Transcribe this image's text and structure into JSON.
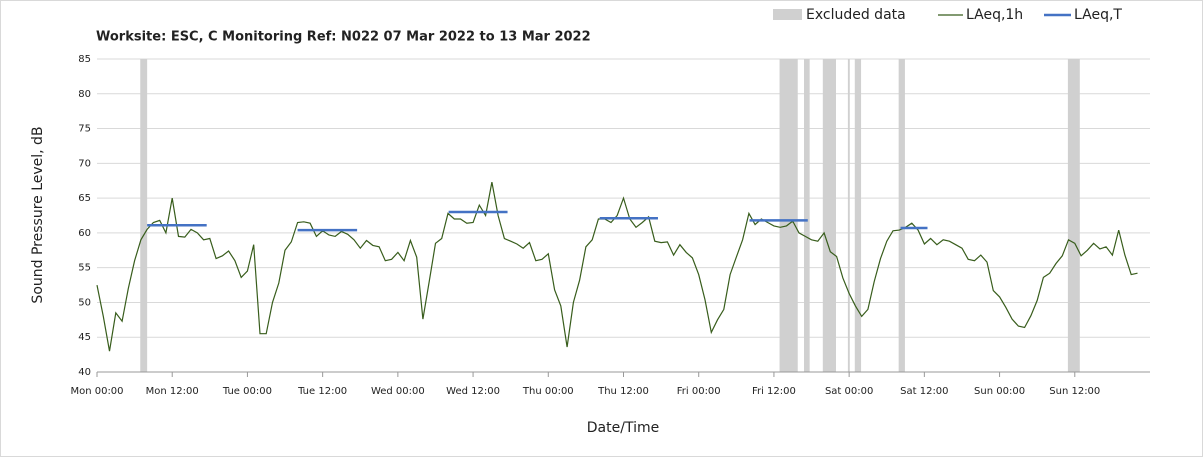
{
  "chart_data": {
    "type": "line",
    "title": "Worksite: ESC, C Monitoring Ref: N022 07 Mar 2022 to 13 Mar 2022",
    "x_label": "Date/Time",
    "y_label": "Sound Pressure Level, dB",
    "xlim": [
      0,
      168
    ],
    "ylim": [
      40,
      85
    ],
    "yticks": [
      40,
      45,
      50,
      55,
      60,
      65,
      70,
      75,
      80,
      85
    ],
    "xticks": [
      {
        "value": 0,
        "label": "Mon 00:00"
      },
      {
        "value": 12,
        "label": "Mon 12:00"
      },
      {
        "value": 24,
        "label": "Tue 00:00"
      },
      {
        "value": 36,
        "label": "Tue 12:00"
      },
      {
        "value": 48,
        "label": "Wed 00:00"
      },
      {
        "value": 60,
        "label": "Wed 12:00"
      },
      {
        "value": 72,
        "label": "Thu 00:00"
      },
      {
        "value": 84,
        "label": "Thu 12:00"
      },
      {
        "value": 96,
        "label": "Fri 00:00"
      },
      {
        "value": 108,
        "label": "Fri 12:00"
      },
      {
        "value": 120,
        "label": "Sat 00:00"
      },
      {
        "value": 132,
        "label": "Sat 12:00"
      },
      {
        "value": 144,
        "label": "Sun 00:00"
      },
      {
        "value": 156,
        "label": "Sun 12:00"
      }
    ],
    "grid": true,
    "legend": "top-right",
    "excluded": {
      "name": "Excluded data",
      "color": "#d0d0d0",
      "ranges": [
        [
          6.9,
          8.0
        ],
        [
          108.9,
          111.8
        ],
        [
          112.8,
          113.7
        ],
        [
          115.8,
          117.9
        ],
        [
          119.8,
          120.1
        ],
        [
          120.9,
          121.9
        ],
        [
          127.9,
          128.9
        ],
        [
          154.9,
          156.8
        ]
      ]
    },
    "series": [
      {
        "name": "LAeq,1h",
        "color": "#385d1c",
        "x": [
          0,
          1,
          2,
          3,
          4,
          5,
          6,
          7,
          8,
          9,
          10,
          11,
          12,
          13,
          14,
          15,
          16,
          17,
          18,
          19,
          20,
          21,
          22,
          23,
          24,
          25,
          26,
          27,
          28,
          29,
          30,
          31,
          32,
          33,
          34,
          35,
          36,
          37,
          38,
          39,
          40,
          41,
          42,
          43,
          44,
          45,
          46,
          47,
          48,
          49,
          50,
          51,
          52,
          53,
          54,
          55,
          56,
          57,
          58,
          59,
          60,
          61,
          62,
          63,
          64,
          65,
          66,
          67,
          68,
          69,
          70,
          71,
          72,
          73,
          74,
          75,
          76,
          77,
          78,
          79,
          80,
          81,
          82,
          83,
          84,
          85,
          86,
          87,
          88,
          89,
          90,
          91,
          92,
          93,
          94,
          95,
          96,
          97,
          98,
          99,
          100,
          101,
          102,
          103,
          104,
          105,
          106,
          107,
          108,
          109,
          110,
          111,
          112,
          113,
          114,
          115,
          116,
          117,
          118,
          119,
          120,
          121,
          122,
          123,
          124,
          125,
          126,
          127,
          128,
          129,
          130,
          131,
          132,
          133,
          134,
          135,
          136,
          137,
          138,
          139,
          140,
          141,
          142,
          143,
          144,
          145,
          146,
          147,
          148,
          149,
          150,
          151,
          152,
          153,
          154,
          155,
          156,
          157,
          158,
          159,
          160,
          161,
          162,
          163,
          164,
          165,
          166
        ],
        "values": [
          52.5,
          48,
          43,
          48.5,
          47.3,
          52,
          56,
          59,
          60.5,
          61.5,
          61.8,
          60,
          65,
          59.5,
          59.4,
          60.5,
          60,
          59,
          59.2,
          56.3,
          56.7,
          57.4,
          56,
          53.6,
          54.5,
          58.3,
          45.5,
          45.5,
          50,
          52.8,
          57.5,
          58.7,
          61.5,
          61.6,
          61.4,
          59.5,
          60.3,
          59.7,
          59.5,
          60.2,
          59.8,
          59,
          57.8,
          58.9,
          58.2,
          58,
          56,
          56.2,
          57.2,
          56,
          58.9,
          56.5,
          47.6,
          53,
          58.5,
          59.2,
          62.8,
          62,
          62,
          61.4,
          61.5,
          64,
          62.5,
          67.3,
          62.5,
          59.2,
          58.8,
          58.4,
          57.8,
          58.6,
          56,
          56.2,
          57,
          51.8,
          49.5,
          43.6,
          50,
          53.2,
          58,
          59,
          62,
          62,
          61.5,
          62.5,
          65,
          62,
          60.8,
          61.5,
          62.3,
          58.8,
          58.6,
          58.7,
          56.8,
          58.3,
          57.2,
          56.4,
          54,
          50.4,
          45.7,
          47.5,
          49,
          54,
          56.5,
          59,
          62.8,
          61.2,
          62,
          61.5,
          61,
          60.8,
          61,
          61.7,
          60,
          59.5,
          59,
          58.8,
          60,
          57.3,
          56.6,
          53.5,
          51.3,
          49.5,
          48,
          49,
          53,
          56.3,
          58.8,
          60.3,
          60.4,
          60.8,
          61.4,
          60.4,
          58.4,
          59.2,
          58.3,
          59,
          58.8,
          58.3,
          57.8,
          56.2,
          56,
          56.8,
          55.8,
          51.7,
          50.8,
          49.3,
          47.6,
          46.6,
          46.4,
          48.1,
          50.3,
          53.6,
          54.2,
          55.6,
          56.7,
          59,
          58.5,
          56.7,
          57.5,
          58.5,
          57.7,
          58,
          56.8,
          60.4,
          56.8,
          54,
          54.2
        ]
      }
    ],
    "segments": {
      "name": "LAeq,T",
      "color": "#4472c4",
      "items": [
        {
          "x": [
            8,
            17.5
          ],
          "value": 61.1
        },
        {
          "x": [
            32,
            41.5
          ],
          "value": 60.4
        },
        {
          "x": [
            56.1,
            65.5
          ],
          "value": 63
        },
        {
          "x": [
            80.2,
            89.5
          ],
          "value": 62.1
        },
        {
          "x": [
            104.1,
            113.4
          ],
          "value": 61.8
        },
        {
          "x": [
            128.2,
            132.5
          ],
          "value": 60.7
        }
      ]
    }
  }
}
